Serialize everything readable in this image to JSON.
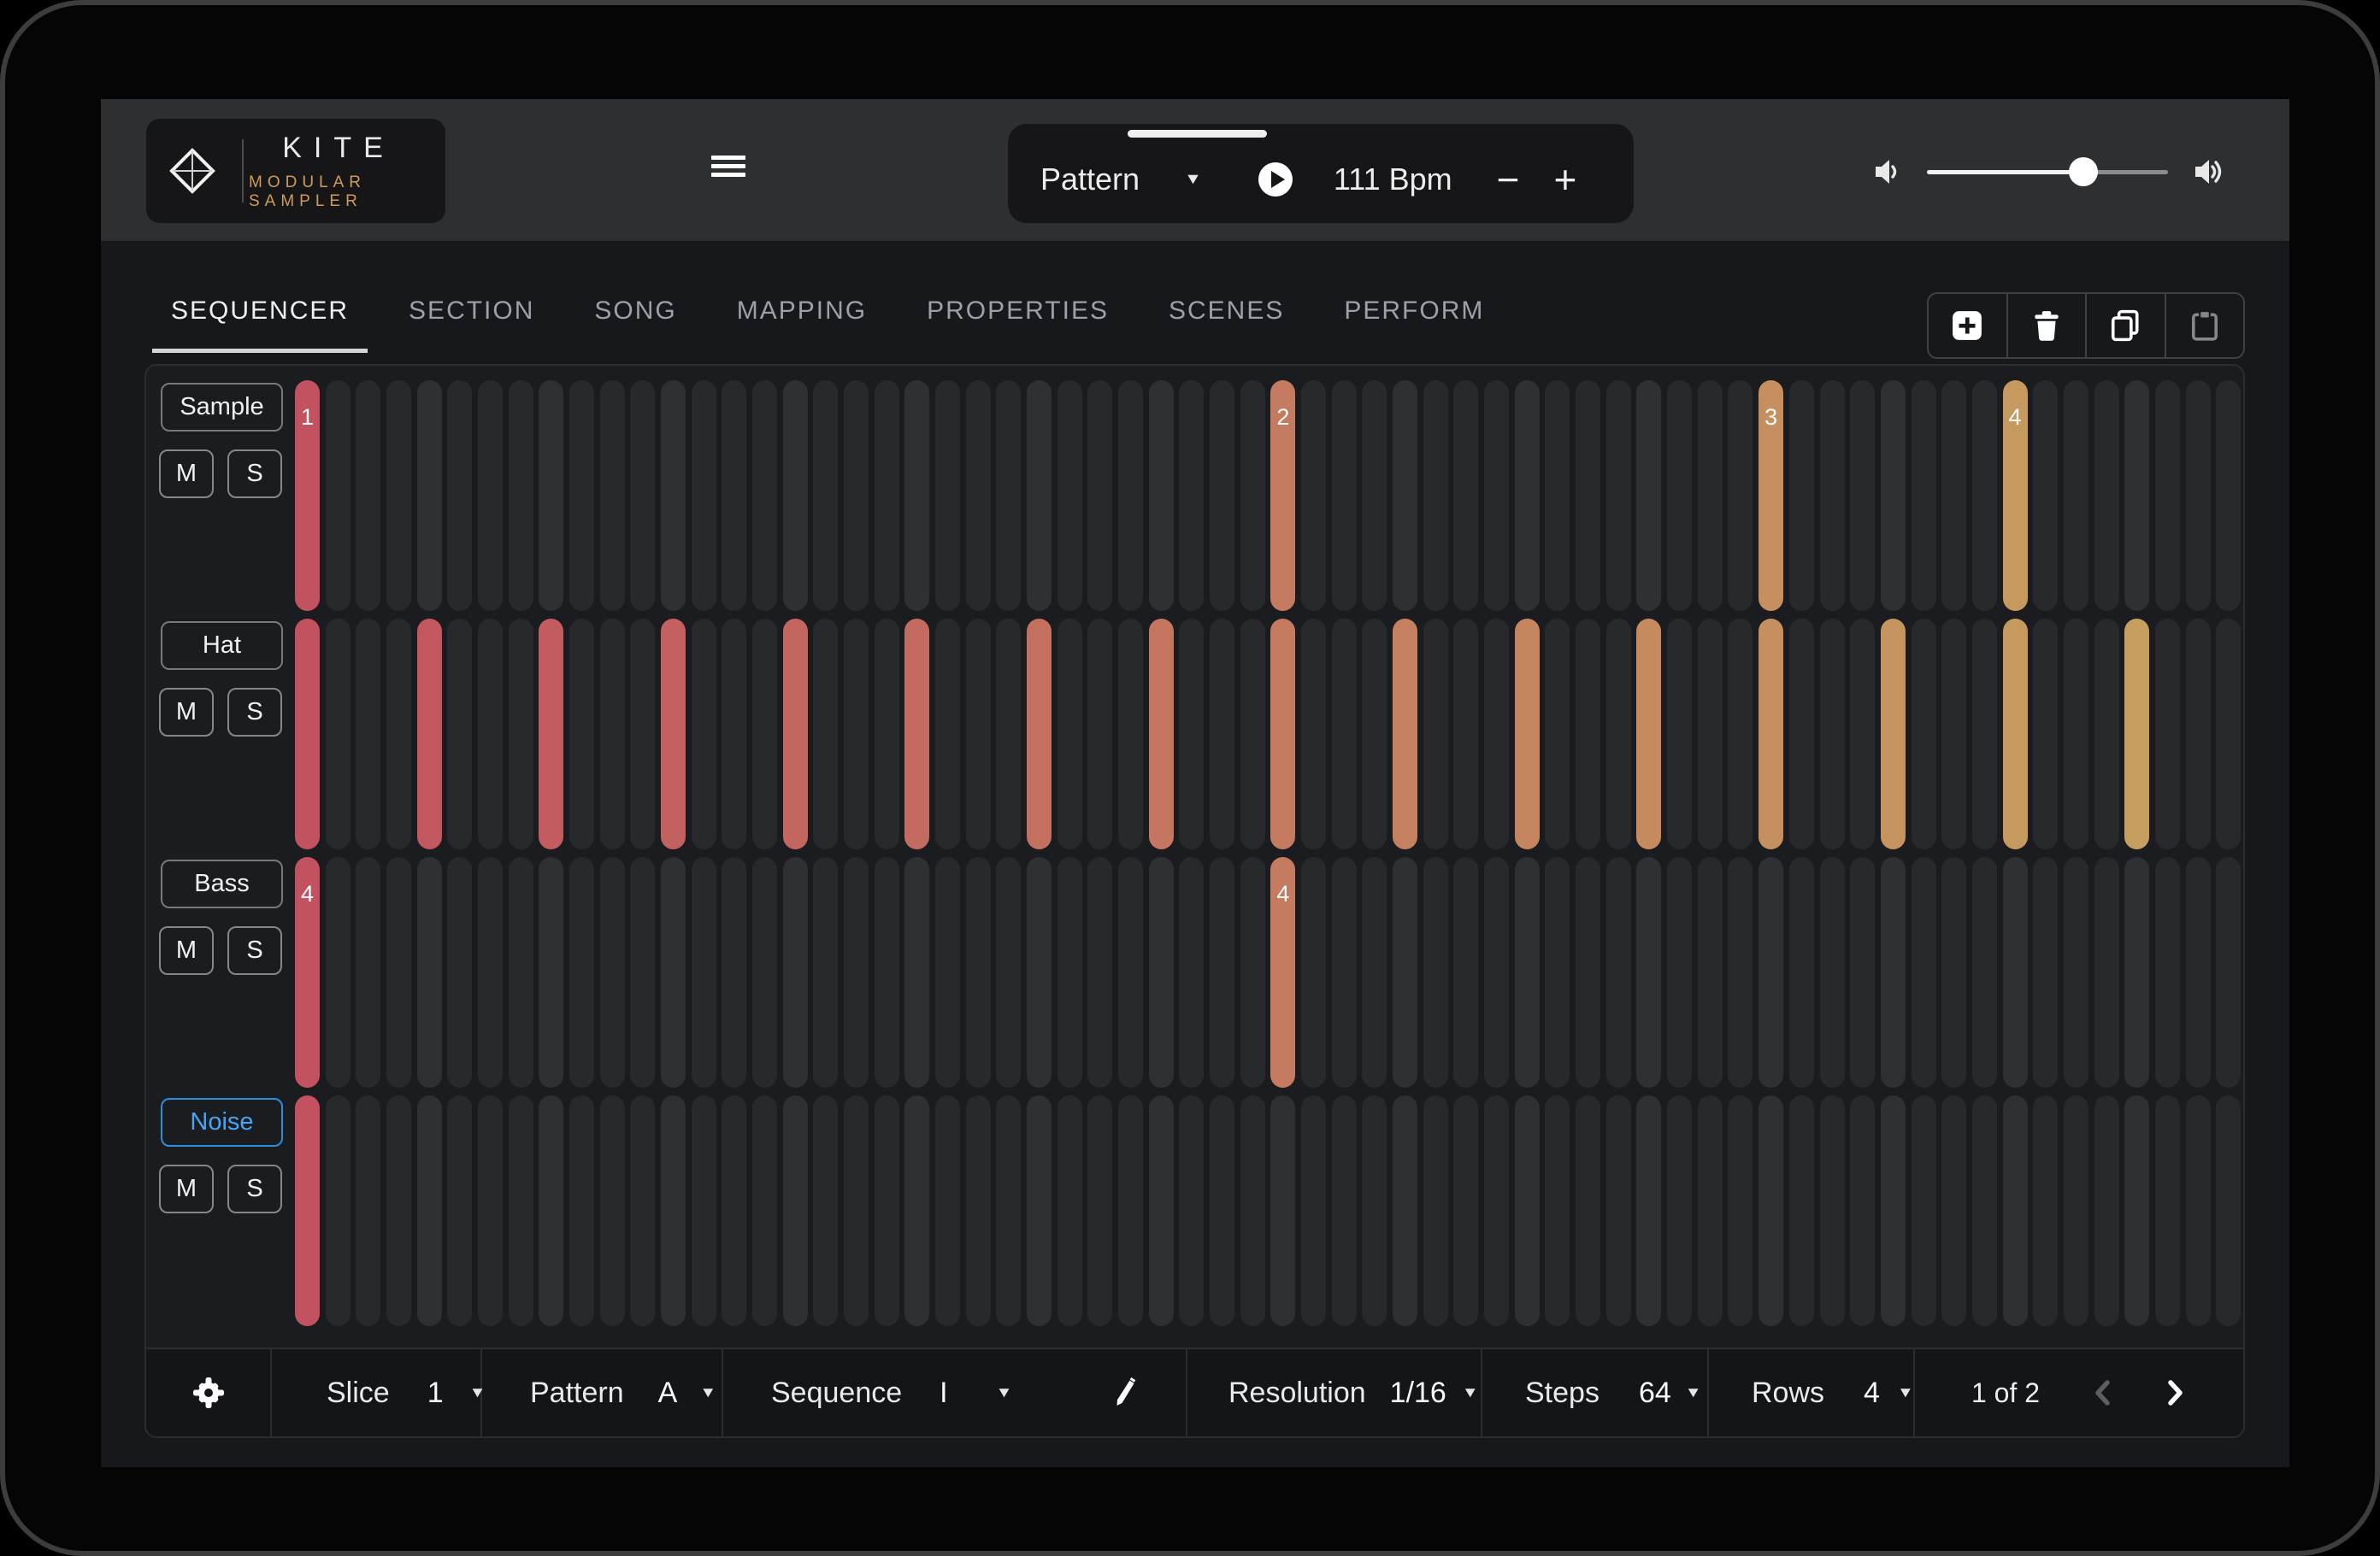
{
  "topbar": {
    "logo": {
      "icon": "kite-diamond-icon",
      "title": "KITE",
      "subtitle": "MODULAR SAMPLER",
      "accent_color": "#d09c55"
    },
    "menu_icon": "hamburger-icon",
    "transport": {
      "mode_label": "Pattern",
      "caret": "▼",
      "play_icon": "play-icon",
      "bpm_value": "111",
      "bpm_unit": "Bpm",
      "decrease_label": "−",
      "increase_label": "+"
    },
    "volume": {
      "low_icon": "speaker-low-icon",
      "high_icon": "speaker-high-icon",
      "level_percent": 65
    }
  },
  "tabs": {
    "items": [
      "SEQUENCER",
      "SECTION",
      "SONG",
      "MAPPING",
      "PROPERTIES",
      "SCENES",
      "PERFORM"
    ],
    "active_index": 0
  },
  "toolbar": {
    "icons": [
      "add",
      "delete",
      "copy",
      "paste"
    ],
    "paste_disabled": true,
    "disabled_color": "#85878b"
  },
  "sequencer": {
    "columns": 64,
    "beat_interval": 4,
    "palette": {
      "active_start": "#c25260",
      "active_end": "#c6a25f",
      "inactive": "#28292c",
      "inactive_beat": "#2f3034"
    },
    "tracks": [
      {
        "name": "Sample",
        "mute_label": "M",
        "solo_label": "S",
        "selected": false,
        "active_steps": [
          1,
          33,
          49,
          57
        ],
        "markers": {
          "1": "1",
          "33": "2",
          "49": "3",
          "57": "4"
        }
      },
      {
        "name": "Hat",
        "mute_label": "M",
        "solo_label": "S",
        "selected": false,
        "active_steps": [
          1,
          5,
          9,
          13,
          17,
          21,
          25,
          29,
          33,
          37,
          41,
          45,
          49,
          53,
          57,
          61
        ],
        "markers": {}
      },
      {
        "name": "Bass",
        "mute_label": "M",
        "solo_label": "S",
        "selected": false,
        "active_steps": [
          1,
          33
        ],
        "markers": {
          "1": "4",
          "33": "4"
        }
      },
      {
        "name": "Noise",
        "mute_label": "M",
        "solo_label": "S",
        "selected": true,
        "active_steps": [
          1
        ],
        "markers": {}
      }
    ]
  },
  "bottom_bar": {
    "settings_icon": "gear-icon",
    "edit_icon": "pencil-icon",
    "caret": "▼",
    "slice": {
      "label": "Slice",
      "value": "1"
    },
    "pattern": {
      "label": "Pattern",
      "value": "A"
    },
    "sequence": {
      "label": "Sequence",
      "value": "I"
    },
    "resolution": {
      "label": "Resolution",
      "value": "1/16"
    },
    "steps": {
      "label": "Steps",
      "value": "64"
    },
    "rows": {
      "label": "Rows",
      "value": "4"
    },
    "pager": {
      "text": "1 of 2",
      "prev_icon": "chevron-left-icon",
      "next_icon": "chevron-right-icon",
      "prev_enabled": false,
      "next_enabled": true
    }
  }
}
